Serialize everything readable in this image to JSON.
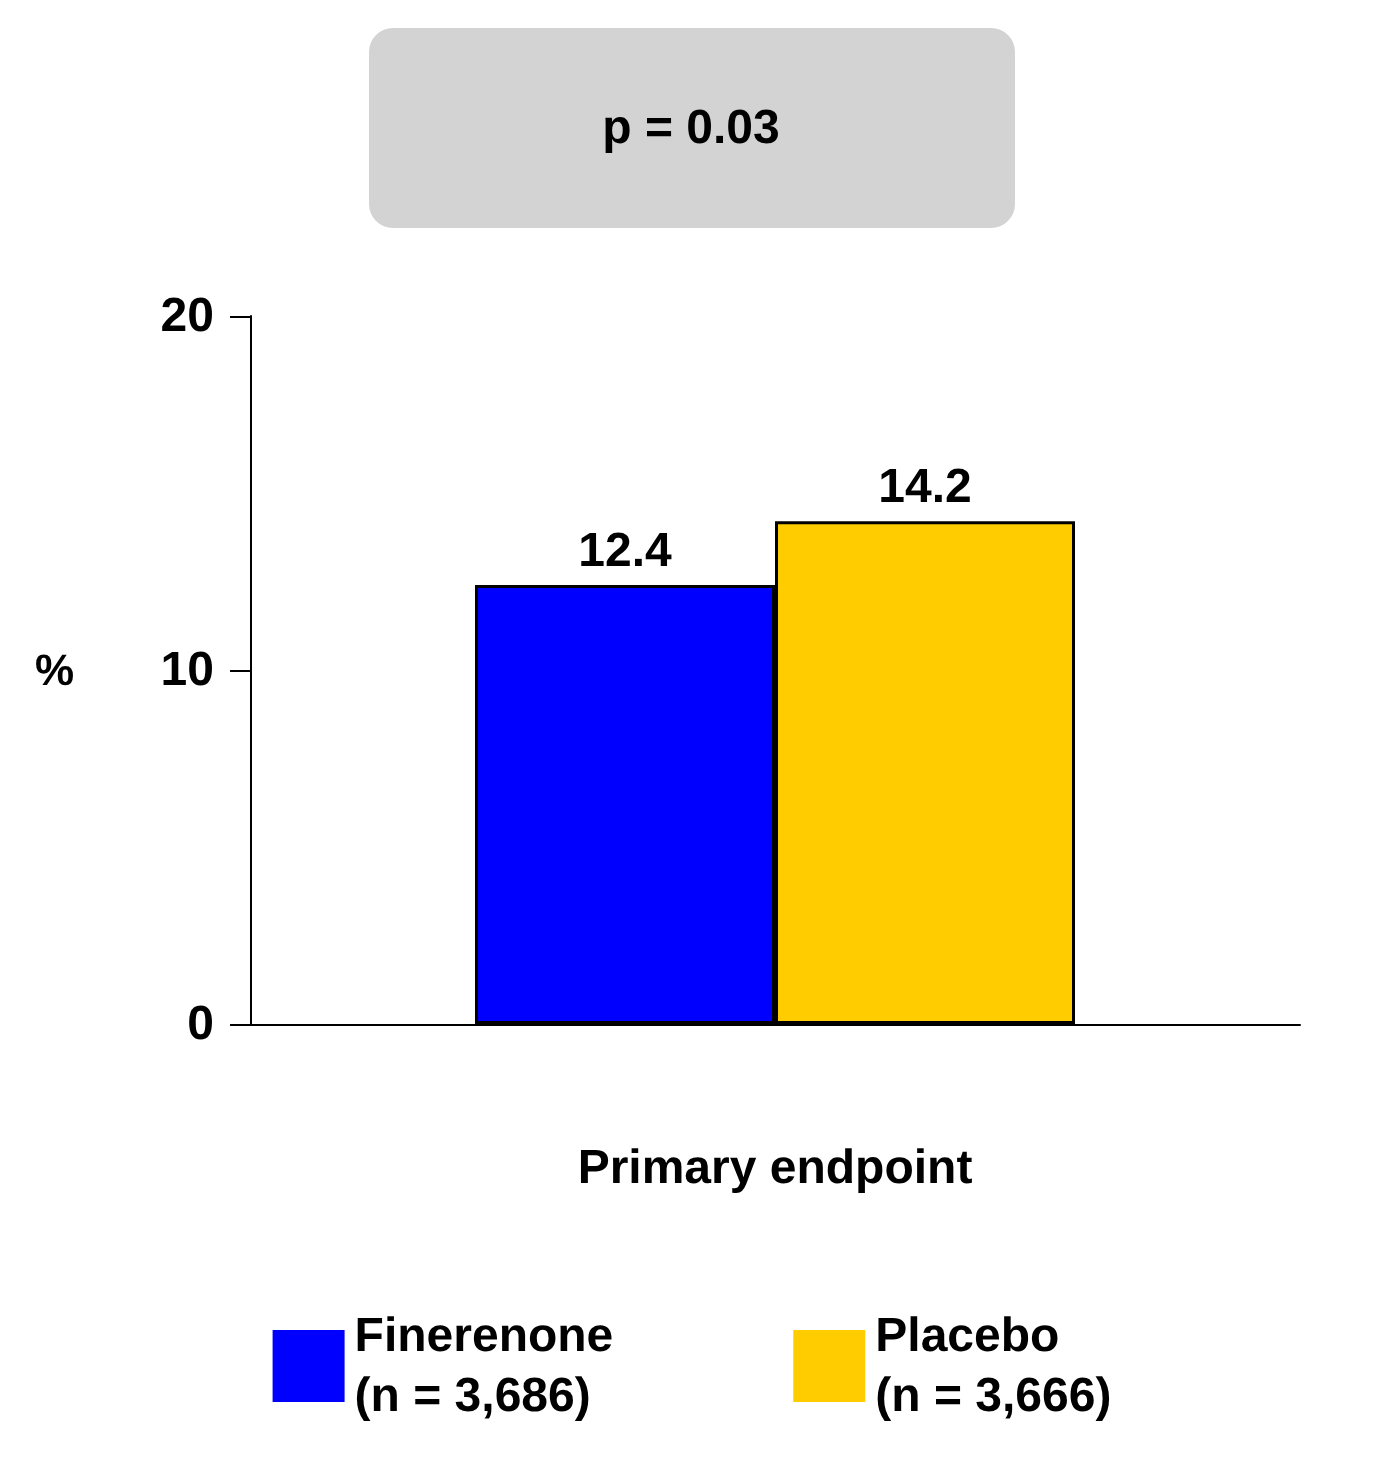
{
  "chart_data": {
    "type": "bar",
    "annotations": [
      "p = 0.03"
    ],
    "ylabel": "%",
    "categories": [
      "Primary endpoint"
    ],
    "series": [
      {
        "name": "Finerenone\n(n = 3,686)",
        "color": "#0000ff",
        "values": [
          12.4
        ]
      },
      {
        "name": "Placebo\n(n = 3,666)",
        "color": "#ffcc00",
        "values": [
          14.2
        ]
      }
    ],
    "ylim": [
      0,
      20
    ],
    "yticks": [
      0,
      10,
      20
    ],
    "data_labels": true,
    "legend": "bottom",
    "grid": false
  }
}
